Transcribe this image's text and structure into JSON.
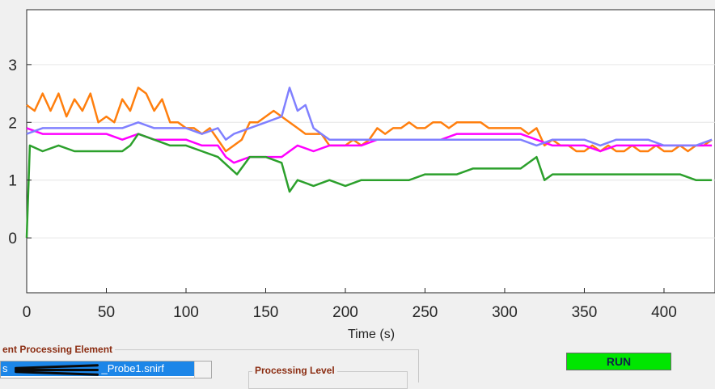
{
  "chart_data": {
    "type": "line",
    "title": "",
    "xlabel": "Time (s)",
    "ylabel": "",
    "xlim": [
      0,
      432
    ],
    "ylim": [
      -0.95,
      3.95
    ],
    "x_ticks": [
      0,
      50,
      100,
      150,
      200,
      250,
      300,
      350,
      400
    ],
    "y_ticks": [
      0,
      1,
      2,
      3
    ],
    "grid": true,
    "legend": "none",
    "series": [
      {
        "color": "#ff7f0e",
        "values": [
          [
            0,
            2.3
          ],
          [
            5,
            2.2
          ],
          [
            10,
            2.5
          ],
          [
            15,
            2.2
          ],
          [
            20,
            2.5
          ],
          [
            25,
            2.1
          ],
          [
            30,
            2.4
          ],
          [
            35,
            2.2
          ],
          [
            40,
            2.5
          ],
          [
            45,
            2.0
          ],
          [
            50,
            2.1
          ],
          [
            55,
            2.0
          ],
          [
            60,
            2.4
          ],
          [
            65,
            2.2
          ],
          [
            70,
            2.6
          ],
          [
            75,
            2.5
          ],
          [
            80,
            2.2
          ],
          [
            85,
            2.4
          ],
          [
            90,
            2.0
          ],
          [
            95,
            2.0
          ],
          [
            100,
            1.9
          ],
          [
            105,
            1.9
          ],
          [
            110,
            1.8
          ],
          [
            115,
            1.9
          ],
          [
            120,
            1.7
          ],
          [
            125,
            1.5
          ],
          [
            130,
            1.6
          ],
          [
            135,
            1.7
          ],
          [
            140,
            2.0
          ],
          [
            145,
            2.0
          ],
          [
            150,
            2.1
          ],
          [
            155,
            2.2
          ],
          [
            160,
            2.1
          ],
          [
            165,
            2.0
          ],
          [
            170,
            1.9
          ],
          [
            175,
            1.8
          ],
          [
            180,
            1.8
          ],
          [
            185,
            1.8
          ],
          [
            190,
            1.6
          ],
          [
            195,
            1.6
          ],
          [
            200,
            1.6
          ],
          [
            205,
            1.7
          ],
          [
            210,
            1.6
          ],
          [
            215,
            1.7
          ],
          [
            220,
            1.9
          ],
          [
            225,
            1.8
          ],
          [
            230,
            1.9
          ],
          [
            235,
            1.9
          ],
          [
            240,
            2.0
          ],
          [
            245,
            1.9
          ],
          [
            250,
            1.9
          ],
          [
            255,
            2.0
          ],
          [
            260,
            2.0
          ],
          [
            265,
            1.9
          ],
          [
            270,
            2.0
          ],
          [
            275,
            2.0
          ],
          [
            280,
            2.0
          ],
          [
            285,
            2.0
          ],
          [
            290,
            1.9
          ],
          [
            295,
            1.9
          ],
          [
            300,
            1.9
          ],
          [
            305,
            1.9
          ],
          [
            310,
            1.9
          ],
          [
            315,
            1.8
          ],
          [
            320,
            1.9
          ],
          [
            325,
            1.6
          ],
          [
            330,
            1.7
          ],
          [
            335,
            1.6
          ],
          [
            340,
            1.6
          ],
          [
            345,
            1.5
          ],
          [
            350,
            1.5
          ],
          [
            355,
            1.6
          ],
          [
            360,
            1.5
          ],
          [
            365,
            1.6
          ],
          [
            370,
            1.5
          ],
          [
            375,
            1.5
          ],
          [
            380,
            1.6
          ],
          [
            385,
            1.5
          ],
          [
            390,
            1.5
          ],
          [
            395,
            1.6
          ],
          [
            400,
            1.5
          ],
          [
            405,
            1.5
          ],
          [
            410,
            1.6
          ],
          [
            415,
            1.5
          ],
          [
            420,
            1.6
          ],
          [
            425,
            1.6
          ],
          [
            430,
            1.7
          ]
        ]
      },
      {
        "color": "#ff00ff",
        "values": [
          [
            0,
            1.9
          ],
          [
            10,
            1.8
          ],
          [
            20,
            1.8
          ],
          [
            30,
            1.8
          ],
          [
            40,
            1.8
          ],
          [
            50,
            1.8
          ],
          [
            60,
            1.7
          ],
          [
            70,
            1.8
          ],
          [
            80,
            1.7
          ],
          [
            90,
            1.7
          ],
          [
            100,
            1.7
          ],
          [
            110,
            1.6
          ],
          [
            120,
            1.6
          ],
          [
            125,
            1.4
          ],
          [
            130,
            1.3
          ],
          [
            140,
            1.4
          ],
          [
            150,
            1.4
          ],
          [
            160,
            1.4
          ],
          [
            165,
            1.5
          ],
          [
            170,
            1.6
          ],
          [
            180,
            1.5
          ],
          [
            190,
            1.6
          ],
          [
            200,
            1.6
          ],
          [
            210,
            1.6
          ],
          [
            220,
            1.7
          ],
          [
            230,
            1.7
          ],
          [
            240,
            1.7
          ],
          [
            250,
            1.7
          ],
          [
            260,
            1.7
          ],
          [
            270,
            1.8
          ],
          [
            280,
            1.8
          ],
          [
            290,
            1.8
          ],
          [
            300,
            1.8
          ],
          [
            310,
            1.8
          ],
          [
            320,
            1.7
          ],
          [
            330,
            1.6
          ],
          [
            340,
            1.6
          ],
          [
            350,
            1.6
          ],
          [
            360,
            1.5
          ],
          [
            370,
            1.6
          ],
          [
            380,
            1.6
          ],
          [
            390,
            1.6
          ],
          [
            400,
            1.6
          ],
          [
            410,
            1.6
          ],
          [
            420,
            1.6
          ],
          [
            430,
            1.6
          ]
        ]
      },
      {
        "color": "#8080ff",
        "values": [
          [
            0,
            1.8
          ],
          [
            10,
            1.9
          ],
          [
            20,
            1.9
          ],
          [
            30,
            1.9
          ],
          [
            40,
            1.9
          ],
          [
            50,
            1.9
          ],
          [
            60,
            1.9
          ],
          [
            70,
            2.0
          ],
          [
            80,
            1.9
          ],
          [
            90,
            1.9
          ],
          [
            100,
            1.9
          ],
          [
            110,
            1.8
          ],
          [
            120,
            1.9
          ],
          [
            125,
            1.7
          ],
          [
            130,
            1.8
          ],
          [
            140,
            1.9
          ],
          [
            150,
            2.0
          ],
          [
            160,
            2.1
          ],
          [
            165,
            2.6
          ],
          [
            170,
            2.2
          ],
          [
            175,
            2.3
          ],
          [
            180,
            1.9
          ],
          [
            185,
            1.8
          ],
          [
            190,
            1.7
          ],
          [
            200,
            1.7
          ],
          [
            210,
            1.7
          ],
          [
            220,
            1.7
          ],
          [
            230,
            1.7
          ],
          [
            240,
            1.7
          ],
          [
            250,
            1.7
          ],
          [
            260,
            1.7
          ],
          [
            270,
            1.7
          ],
          [
            280,
            1.7
          ],
          [
            290,
            1.7
          ],
          [
            300,
            1.7
          ],
          [
            310,
            1.7
          ],
          [
            320,
            1.6
          ],
          [
            330,
            1.7
          ],
          [
            340,
            1.7
          ],
          [
            350,
            1.7
          ],
          [
            360,
            1.6
          ],
          [
            370,
            1.7
          ],
          [
            380,
            1.7
          ],
          [
            390,
            1.7
          ],
          [
            400,
            1.6
          ],
          [
            410,
            1.6
          ],
          [
            420,
            1.6
          ],
          [
            430,
            1.7
          ]
        ]
      },
      {
        "color": "#2ca02c",
        "values": [
          [
            0,
            0.0
          ],
          [
            2,
            1.6
          ],
          [
            10,
            1.5
          ],
          [
            20,
            1.6
          ],
          [
            30,
            1.5
          ],
          [
            40,
            1.5
          ],
          [
            50,
            1.5
          ],
          [
            60,
            1.5
          ],
          [
            65,
            1.6
          ],
          [
            70,
            1.8
          ],
          [
            80,
            1.7
          ],
          [
            90,
            1.6
          ],
          [
            100,
            1.6
          ],
          [
            110,
            1.5
          ],
          [
            120,
            1.4
          ],
          [
            128,
            1.2
          ],
          [
            132,
            1.1
          ],
          [
            140,
            1.4
          ],
          [
            150,
            1.4
          ],
          [
            160,
            1.3
          ],
          [
            165,
            0.8
          ],
          [
            170,
            1.0
          ],
          [
            180,
            0.9
          ],
          [
            190,
            1.0
          ],
          [
            200,
            0.9
          ],
          [
            210,
            1.0
          ],
          [
            220,
            1.0
          ],
          [
            230,
            1.0
          ],
          [
            240,
            1.0
          ],
          [
            250,
            1.1
          ],
          [
            260,
            1.1
          ],
          [
            270,
            1.1
          ],
          [
            280,
            1.2
          ],
          [
            290,
            1.2
          ],
          [
            300,
            1.2
          ],
          [
            310,
            1.2
          ],
          [
            320,
            1.4
          ],
          [
            325,
            1.0
          ],
          [
            330,
            1.1
          ],
          [
            340,
            1.1
          ],
          [
            350,
            1.1
          ],
          [
            360,
            1.1
          ],
          [
            370,
            1.1
          ],
          [
            380,
            1.1
          ],
          [
            390,
            1.1
          ],
          [
            400,
            1.1
          ],
          [
            410,
            1.1
          ],
          [
            420,
            1.0
          ],
          [
            430,
            1.0
          ]
        ]
      }
    ]
  },
  "processing_element": {
    "title": "ent Processing Element",
    "file_prefix": "s",
    "file_suffix": "_Probe1.snirf"
  },
  "processing_level": {
    "title": "Processing Level"
  },
  "run_button": {
    "label": "RUN",
    "color": "#00e600"
  }
}
